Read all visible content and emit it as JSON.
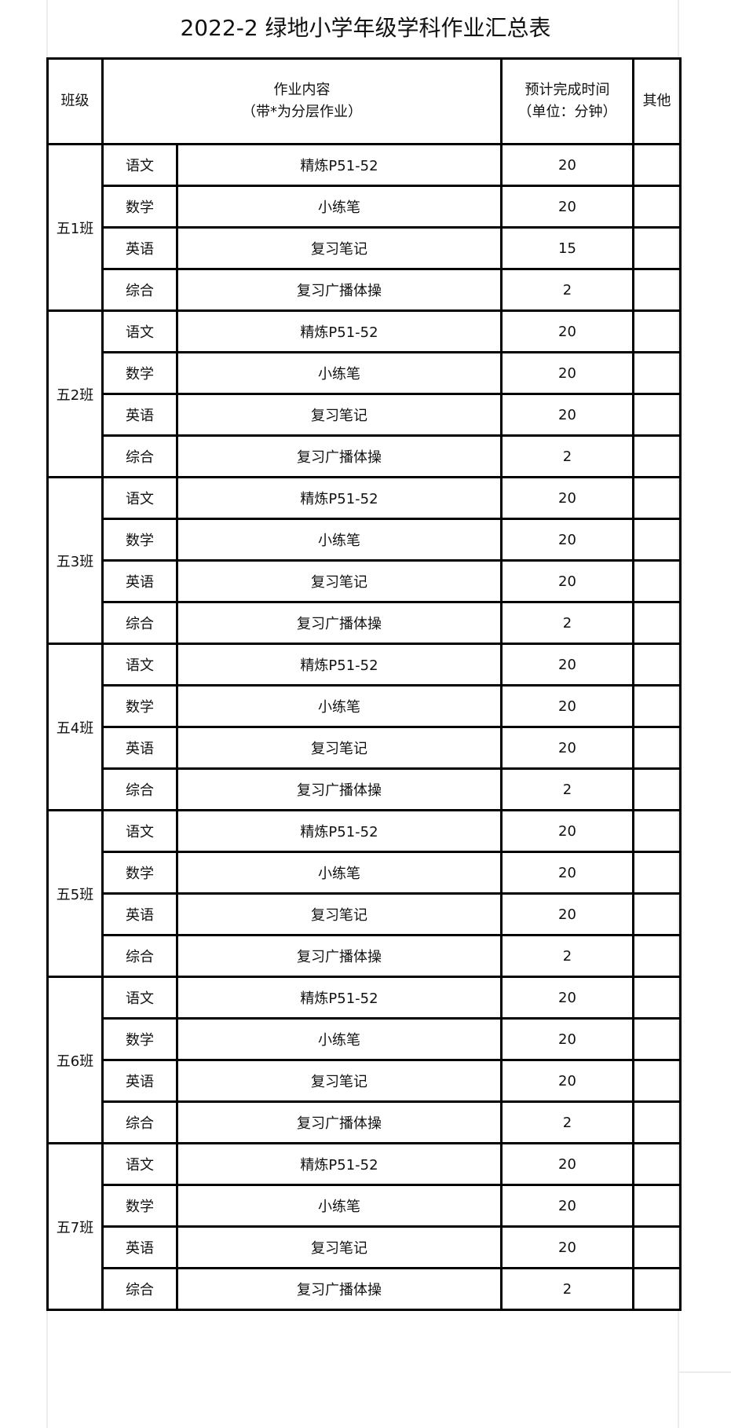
{
  "title": "2022-2 绿地小学年级学科作业汇总表",
  "header": {
    "class": "班级",
    "content_line1": "作业内容",
    "content_line2": "（带*为分层作业）",
    "time_line1": "预计完成时间",
    "time_line2": "（单位：分钟）",
    "other": "其他"
  },
  "classes": [
    {
      "name": "五1班",
      "rows": [
        {
          "subject": "语文",
          "task": "精炼P51-52",
          "minutes": "20",
          "other": ""
        },
        {
          "subject": "数学",
          "task": "小练笔",
          "minutes": "20",
          "other": ""
        },
        {
          "subject": "英语",
          "task": "复习笔记",
          "minutes": "15",
          "other": ""
        },
        {
          "subject": "综合",
          "task": "复习广播体操",
          "minutes": "2",
          "other": ""
        }
      ]
    },
    {
      "name": "五2班",
      "rows": [
        {
          "subject": "语文",
          "task": "精炼P51-52",
          "minutes": "20",
          "other": ""
        },
        {
          "subject": "数学",
          "task": "小练笔",
          "minutes": "20",
          "other": ""
        },
        {
          "subject": "英语",
          "task": "复习笔记",
          "minutes": "20",
          "other": ""
        },
        {
          "subject": "综合",
          "task": "复习广播体操",
          "minutes": "2",
          "other": ""
        }
      ]
    },
    {
      "name": "五3班",
      "rows": [
        {
          "subject": "语文",
          "task": "精炼P51-52",
          "minutes": "20",
          "other": ""
        },
        {
          "subject": "数学",
          "task": "小练笔",
          "minutes": "20",
          "other": ""
        },
        {
          "subject": "英语",
          "task": "复习笔记",
          "minutes": "20",
          "other": ""
        },
        {
          "subject": "综合",
          "task": "复习广播体操",
          "minutes": "2",
          "other": ""
        }
      ]
    },
    {
      "name": "五4班",
      "rows": [
        {
          "subject": "语文",
          "task": "精炼P51-52",
          "minutes": "20",
          "other": ""
        },
        {
          "subject": "数学",
          "task": "小练笔",
          "minutes": "20",
          "other": ""
        },
        {
          "subject": "英语",
          "task": "复习笔记",
          "minutes": "20",
          "other": ""
        },
        {
          "subject": "综合",
          "task": "复习广播体操",
          "minutes": "2",
          "other": ""
        }
      ]
    },
    {
      "name": "五5班",
      "rows": [
        {
          "subject": "语文",
          "task": "精炼P51-52",
          "minutes": "20",
          "other": ""
        },
        {
          "subject": "数学",
          "task": "小练笔",
          "minutes": "20",
          "other": ""
        },
        {
          "subject": "英语",
          "task": "复习笔记",
          "minutes": "20",
          "other": ""
        },
        {
          "subject": "综合",
          "task": "复习广播体操",
          "minutes": "2",
          "other": ""
        }
      ]
    },
    {
      "name": "五6班",
      "rows": [
        {
          "subject": "语文",
          "task": "精炼P51-52",
          "minutes": "20",
          "other": ""
        },
        {
          "subject": "数学",
          "task": "小练笔",
          "minutes": "20",
          "other": ""
        },
        {
          "subject": "英语",
          "task": "复习笔记",
          "minutes": "20",
          "other": ""
        },
        {
          "subject": "综合",
          "task": "复习广播体操",
          "minutes": "2",
          "other": ""
        }
      ]
    },
    {
      "name": "五7班",
      "rows": [
        {
          "subject": "语文",
          "task": "精炼P51-52",
          "minutes": "20",
          "other": ""
        },
        {
          "subject": "数学",
          "task": "小练笔",
          "minutes": "20",
          "other": ""
        },
        {
          "subject": "英语",
          "task": "复习笔记",
          "minutes": "20",
          "other": ""
        },
        {
          "subject": "综合",
          "task": "复习广播体操",
          "minutes": "2",
          "other": ""
        }
      ]
    }
  ]
}
